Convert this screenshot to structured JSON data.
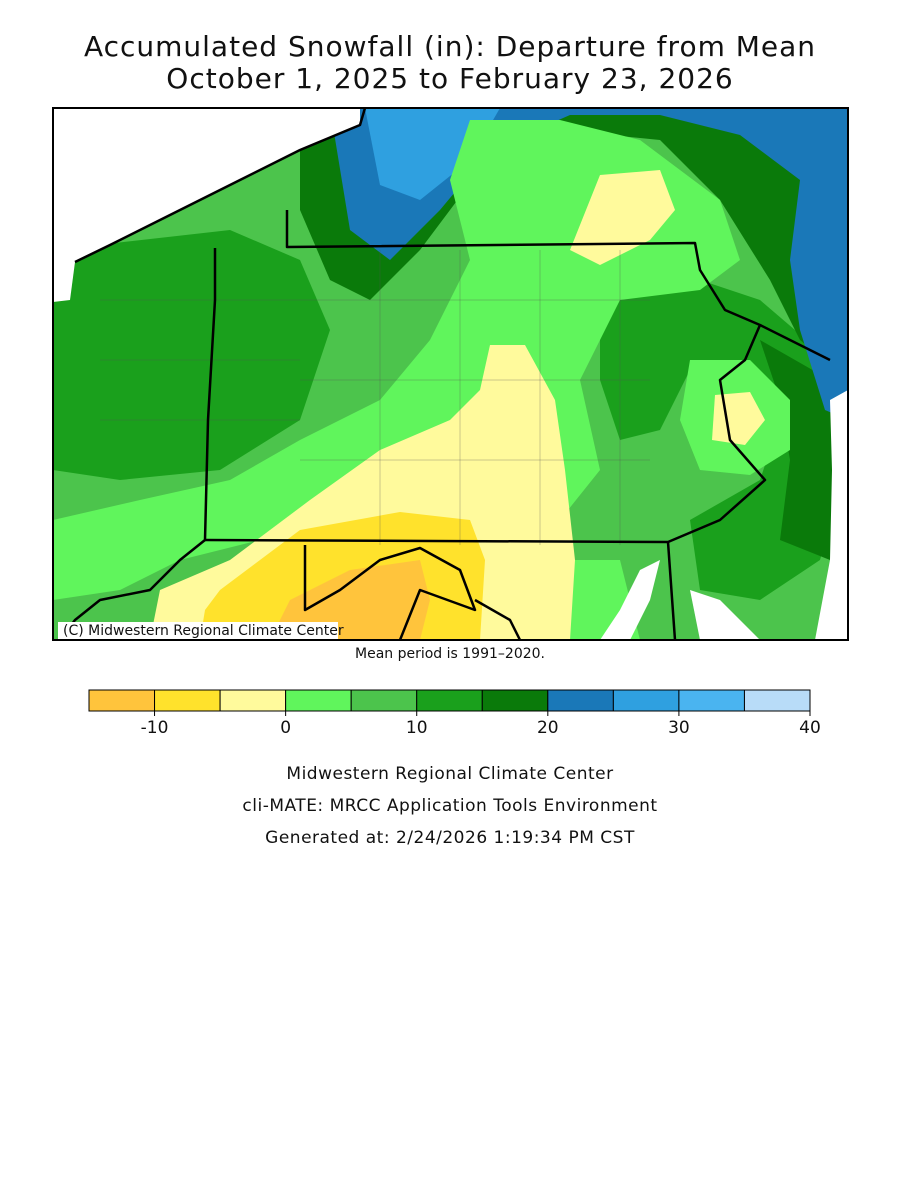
{
  "title_lines": [
    "Accumulated Snowfall (in): Departure from Mean",
    "October 1, 2025 to February 23, 2026"
  ],
  "map": {
    "credit": "(C) Midwestern Regional Climate Center",
    "note": "Mean period is 1991–2020."
  },
  "legend": {
    "bounds": [
      -15,
      -10,
      -5,
      0,
      5,
      10,
      15,
      20,
      25,
      30,
      35,
      40
    ],
    "colors": [
      "#ffc43c",
      "#ffe22c",
      "#fffa9c",
      "#60f55c",
      "#4cc44c",
      "#1aa01c",
      "#0a7a0a",
      "#1a78b8",
      "#2fa0e0",
      "#4ab4f0",
      "#b8dcf8"
    ],
    "ticks": [
      -10,
      0,
      10,
      20,
      30,
      40
    ]
  },
  "footer": [
    "Midwestern Regional Climate Center",
    "cli-MATE: MRCC Application Tools Environment",
    "Generated at: 2/24/2026 1:19:34 PM CST"
  ]
}
